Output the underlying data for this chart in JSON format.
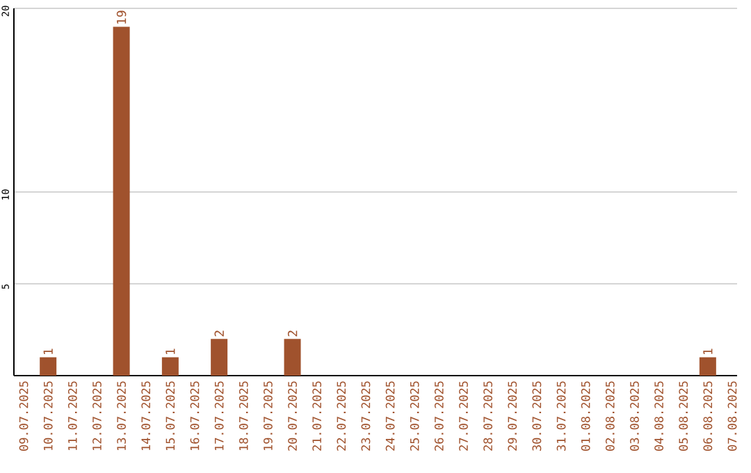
{
  "chart_data": {
    "type": "bar",
    "categories": [
      "09.07.2025",
      "10.07.2025",
      "11.07.2025",
      "12.07.2025",
      "13.07.2025",
      "14.07.2025",
      "15.07.2025",
      "16.07.2025",
      "17.07.2025",
      "18.07.2025",
      "19.07.2025",
      "20.07.2025",
      "21.07.2025",
      "22.07.2025",
      "23.07.2025",
      "24.07.2025",
      "25.07.2025",
      "26.07.2025",
      "27.07.2025",
      "28.07.2025",
      "29.07.2025",
      "30.07.2025",
      "31.07.2025",
      "01.08.2025",
      "02.08.2025",
      "03.08.2025",
      "04.08.2025",
      "05.08.2025",
      "06.08.2025",
      "07.08.2025"
    ],
    "values": [
      0,
      1,
      0,
      0,
      19,
      0,
      1,
      0,
      2,
      0,
      0,
      2,
      0,
      0,
      0,
      0,
      0,
      0,
      0,
      0,
      0,
      0,
      0,
      0,
      0,
      0,
      0,
      0,
      1,
      0
    ],
    "value_labels": [
      null,
      "1",
      null,
      null,
      "19",
      null,
      "1",
      null,
      "2",
      null,
      null,
      "2",
      null,
      null,
      null,
      null,
      null,
      null,
      null,
      null,
      null,
      null,
      null,
      null,
      null,
      null,
      null,
      null,
      "1",
      null
    ],
    "color": "#a0522d",
    "ylim": [
      0,
      20
    ],
    "yticks": [
      5,
      10,
      20
    ],
    "grid": "y"
  }
}
